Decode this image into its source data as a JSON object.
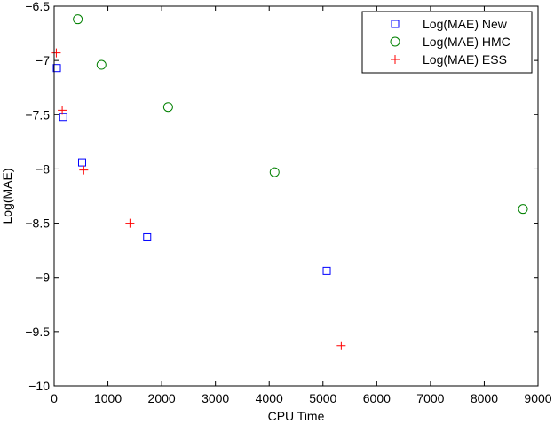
{
  "chart_data": {
    "type": "scatter",
    "xlabel": "CPU Time",
    "ylabel": "Log(MAE)",
    "xlim": [
      0,
      9000
    ],
    "ylim": [
      -10,
      -6.5
    ],
    "x_ticks": [
      0,
      1000,
      2000,
      3000,
      4000,
      5000,
      6000,
      7000,
      8000,
      9000
    ],
    "x_tick_labels": [
      "0",
      "1000",
      "2000",
      "3000",
      "4000",
      "5000",
      "6000",
      "7000",
      "8000",
      "9000"
    ],
    "y_ticks": [
      -10,
      -9.5,
      -9,
      -8.5,
      -8,
      -7.5,
      -7,
      -6.5
    ],
    "y_tick_labels": [
      "−10",
      "−9.5",
      "−9",
      "−8.5",
      "−8",
      "−7.5",
      "−7",
      "−6.5"
    ],
    "grid": false,
    "legend_position": "top-right",
    "series": [
      {
        "name": "Log(MAE) New",
        "marker": "square",
        "color": "#0000ff",
        "points": [
          [
            50,
            -7.07
          ],
          [
            170,
            -7.52
          ],
          [
            520,
            -7.94
          ],
          [
            1730,
            -8.63
          ],
          [
            5070,
            -8.94
          ]
        ]
      },
      {
        "name": "Log(MAE) HMC",
        "marker": "circle",
        "color": "#008000",
        "points": [
          [
            440,
            -6.62
          ],
          [
            880,
            -7.04
          ],
          [
            2120,
            -7.43
          ],
          [
            4100,
            -8.03
          ],
          [
            8720,
            -8.37
          ]
        ]
      },
      {
        "name": "Log(MAE) ESS",
        "marker": "plus",
        "color": "#ff0000",
        "points": [
          [
            40,
            -6.93
          ],
          [
            150,
            -7.46
          ],
          [
            550,
            -8.01
          ],
          [
            1410,
            -8.5
          ],
          [
            5340,
            -9.63
          ]
        ]
      }
    ]
  }
}
